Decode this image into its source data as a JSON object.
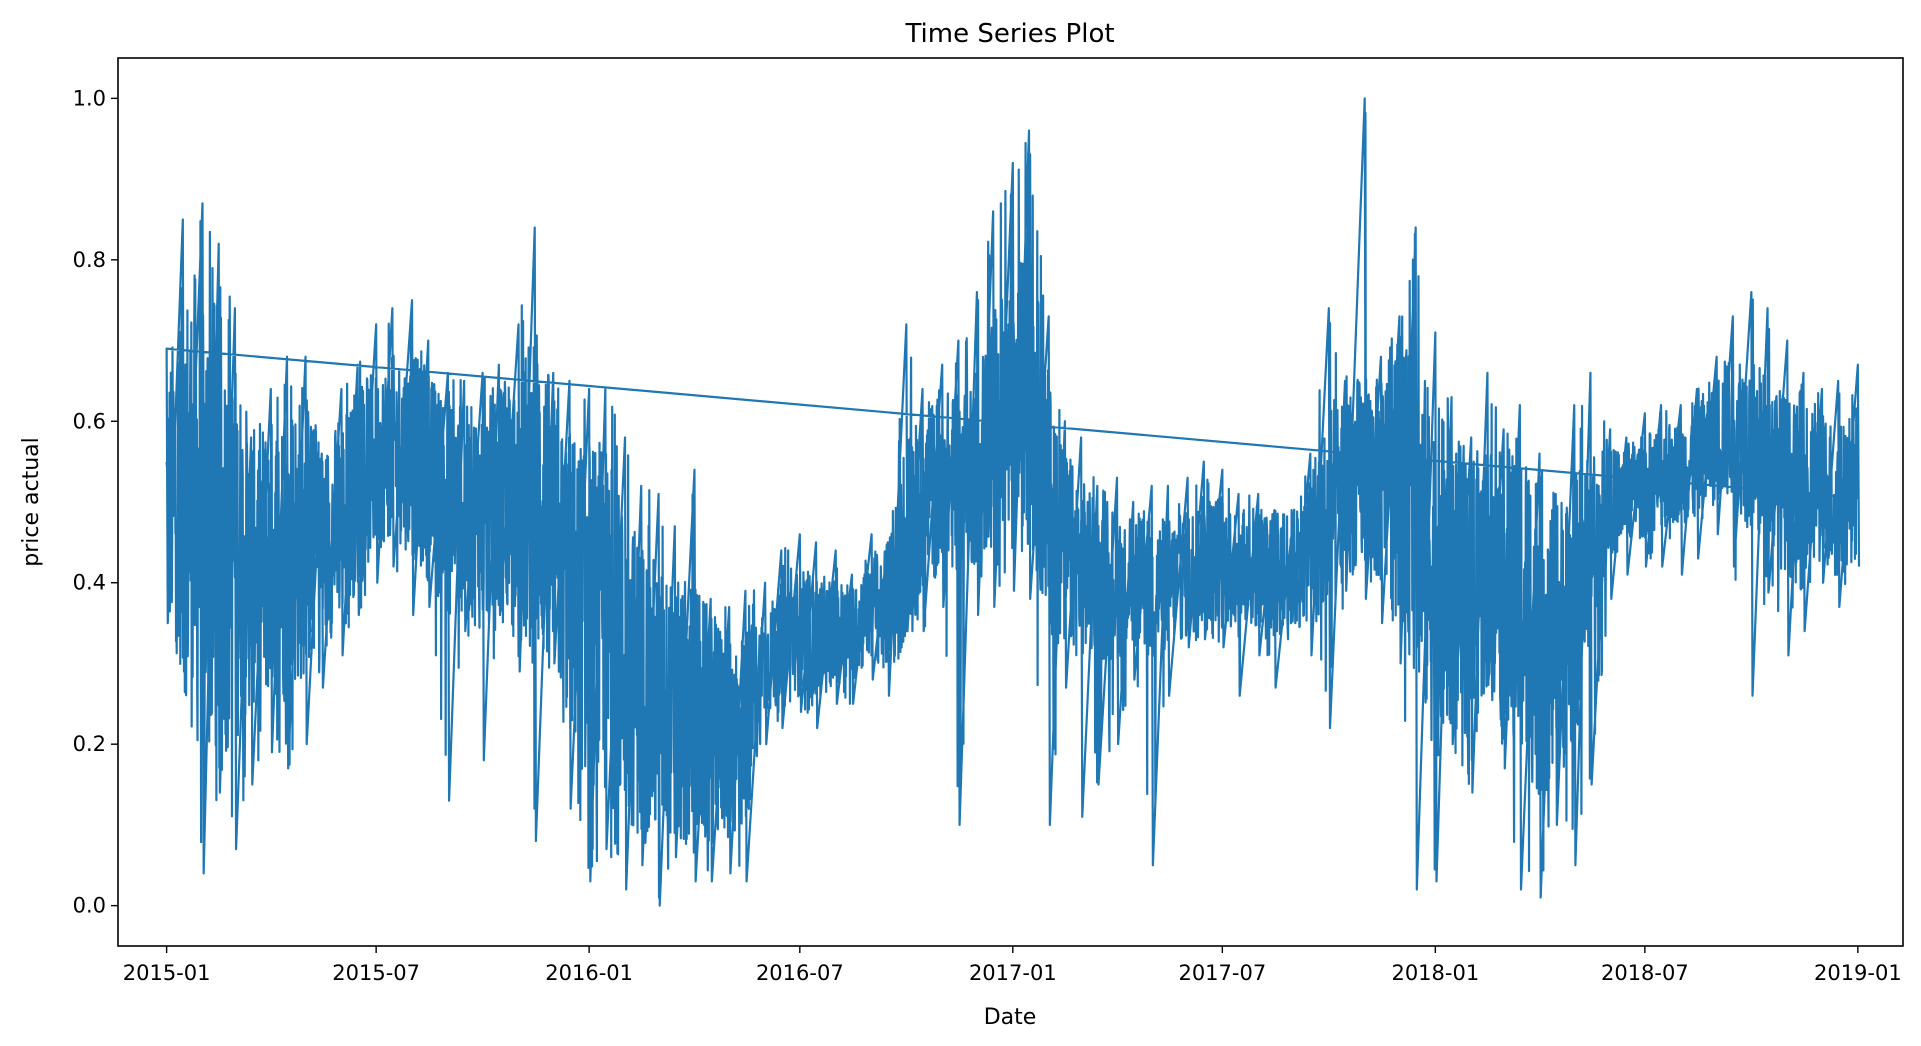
{
  "chart_data": {
    "type": "line",
    "title": "Time Series Plot",
    "xlabel": "Date",
    "ylabel": "price actual",
    "x_range": [
      "2014-11-20",
      "2019-02-09"
    ],
    "ylim": [
      -0.05,
      1.05
    ],
    "x_ticks": [
      {
        "date": "2015-01-01",
        "label": "2015-01"
      },
      {
        "date": "2015-07-01",
        "label": "2015-07"
      },
      {
        "date": "2016-01-01",
        "label": "2016-01"
      },
      {
        "date": "2016-07-01",
        "label": "2016-07"
      },
      {
        "date": "2017-01-01",
        "label": "2017-01"
      },
      {
        "date": "2017-07-01",
        "label": "2017-07"
      },
      {
        "date": "2018-01-01",
        "label": "2018-01"
      },
      {
        "date": "2018-07-01",
        "label": "2018-07"
      },
      {
        "date": "2019-01-01",
        "label": "2019-01"
      }
    ],
    "y_ticks": [
      0.0,
      0.2,
      0.4,
      0.6,
      0.8,
      1.0
    ],
    "y_tick_labels": [
      "0.0",
      "0.2",
      "0.4",
      "0.6",
      "0.8",
      "1.0"
    ],
    "grid": false,
    "line_color": "#1f77b4",
    "series": [
      {
        "x": [
          "2015-01-01",
          "2015-01-15",
          "2015-02-01",
          "2015-02-15",
          "2015-03-01",
          "2015-03-15",
          "2015-04-01",
          "2015-04-15",
          "2015-05-01",
          "2015-05-15",
          "2015-06-01",
          "2015-06-15",
          "2015-07-01",
          "2015-07-15",
          "2015-08-01",
          "2015-08-15",
          "2015-09-01",
          "2015-09-15",
          "2015-10-01",
          "2015-10-15",
          "2015-11-01",
          "2015-11-15",
          "2015-12-01",
          "2015-12-15",
          "2016-01-01",
          "2016-01-15",
          "2016-02-01",
          "2016-02-15",
          "2016-03-01",
          "2016-03-15",
          "2016-04-01",
          "2016-04-15",
          "2016-05-01",
          "2016-05-15",
          "2016-06-01",
          "2016-06-15",
          "2016-07-01",
          "2016-07-15",
          "2016-08-01",
          "2016-08-15",
          "2016-09-01",
          "2016-09-15",
          "2016-10-01",
          "2016-10-15",
          "2016-11-01",
          "2016-11-15",
          "2016-12-01",
          "2016-12-15",
          "2017-01-01",
          "2017-01-15",
          "2017-02-01",
          "2017-02-15",
          "2017-03-01",
          "2017-03-15",
          "2017-04-01",
          "2017-04-15",
          "2017-05-01",
          "2017-05-15",
          "2017-06-01",
          "2017-06-15",
          "2017-07-01",
          "2017-07-15",
          "2017-08-01",
          "2017-08-15",
          "2017-09-01",
          "2017-09-15",
          "2017-10-01",
          "2017-10-15",
          "2017-11-01",
          "2017-11-15",
          "2017-12-01",
          "2017-12-15",
          "2018-01-01",
          "2018-01-15",
          "2018-02-01",
          "2018-02-15",
          "2018-03-01",
          "2018-03-15",
          "2018-04-01",
          "2018-04-15",
          "2018-05-01",
          "2018-05-15",
          "2018-06-01",
          "2018-06-15",
          "2018-07-01",
          "2018-07-15",
          "2018-08-01",
          "2018-08-15",
          "2018-09-01",
          "2018-09-15",
          "2018-10-01",
          "2018-10-15",
          "2018-11-01",
          "2018-11-15",
          "2018-12-01",
          "2018-12-15",
          "2019-01-01"
        ],
        "low": [
          0.35,
          0.29,
          0.04,
          0.14,
          0.07,
          0.15,
          0.19,
          0.17,
          0.2,
          0.27,
          0.31,
          0.36,
          0.4,
          0.42,
          0.36,
          0.37,
          0.13,
          0.34,
          0.18,
          0.36,
          0.29,
          0.08,
          0.3,
          0.12,
          0.03,
          0.07,
          0.02,
          0.05,
          0.0,
          0.06,
          0.03,
          0.03,
          0.04,
          0.03,
          0.2,
          0.22,
          0.24,
          0.22,
          0.25,
          0.25,
          0.28,
          0.26,
          0.34,
          0.34,
          0.37,
          0.1,
          0.36,
          0.37,
          0.39,
          0.38,
          0.1,
          0.27,
          0.11,
          0.15,
          0.2,
          0.28,
          0.05,
          0.26,
          0.32,
          0.33,
          0.32,
          0.26,
          0.31,
          0.27,
          0.35,
          0.31,
          0.22,
          0.39,
          0.38,
          0.35,
          0.3,
          0.02,
          0.03,
          0.2,
          0.14,
          0.28,
          0.17,
          0.02,
          0.01,
          0.1,
          0.05,
          0.15,
          0.38,
          0.41,
          0.42,
          0.42,
          0.41,
          0.43,
          0.46,
          0.42,
          0.26,
          0.39,
          0.31,
          0.34,
          0.4,
          0.37,
          0.42
        ],
        "high": [
          0.69,
          0.85,
          0.87,
          0.82,
          0.74,
          0.58,
          0.64,
          0.68,
          0.68,
          0.56,
          0.64,
          0.67,
          0.72,
          0.74,
          0.75,
          0.7,
          0.66,
          0.65,
          0.66,
          0.67,
          0.72,
          0.84,
          0.66,
          0.65,
          0.64,
          0.64,
          0.58,
          0.52,
          0.51,
          0.47,
          0.54,
          0.38,
          0.37,
          0.39,
          0.4,
          0.44,
          0.46,
          0.45,
          0.44,
          0.41,
          0.46,
          0.45,
          0.72,
          0.64,
          0.67,
          0.7,
          0.76,
          0.86,
          0.92,
          0.96,
          0.73,
          0.6,
          0.58,
          0.52,
          0.53,
          0.5,
          0.52,
          0.52,
          0.53,
          0.55,
          0.54,
          0.51,
          0.51,
          0.49,
          0.49,
          0.56,
          0.74,
          0.65,
          1.0,
          0.68,
          0.73,
          0.84,
          0.71,
          0.63,
          0.58,
          0.66,
          0.59,
          0.62,
          0.56,
          0.51,
          0.62,
          0.66,
          0.59,
          0.58,
          0.61,
          0.62,
          0.62,
          0.64,
          0.68,
          0.73,
          0.76,
          0.74,
          0.7,
          0.66,
          0.64,
          0.65,
          0.67
        ],
        "center": [
          0.5,
          0.52,
          0.48,
          0.46,
          0.44,
          0.42,
          0.43,
          0.44,
          0.46,
          0.44,
          0.48,
          0.52,
          0.55,
          0.57,
          0.56,
          0.53,
          0.5,
          0.49,
          0.48,
          0.5,
          0.48,
          0.52,
          0.46,
          0.4,
          0.36,
          0.35,
          0.3,
          0.27,
          0.25,
          0.24,
          0.23,
          0.22,
          0.21,
          0.22,
          0.3,
          0.32,
          0.34,
          0.33,
          0.34,
          0.34,
          0.37,
          0.37,
          0.45,
          0.5,
          0.53,
          0.52,
          0.55,
          0.58,
          0.6,
          0.64,
          0.5,
          0.44,
          0.42,
          0.4,
          0.4,
          0.4,
          0.39,
          0.4,
          0.41,
          0.43,
          0.43,
          0.41,
          0.42,
          0.41,
          0.42,
          0.45,
          0.48,
          0.52,
          0.54,
          0.52,
          0.53,
          0.48,
          0.4,
          0.4,
          0.38,
          0.42,
          0.4,
          0.38,
          0.34,
          0.33,
          0.36,
          0.45,
          0.5,
          0.51,
          0.52,
          0.53,
          0.54,
          0.55,
          0.58,
          0.6,
          0.57,
          0.55,
          0.52,
          0.5,
          0.52,
          0.5,
          0.53
        ],
        "spread": [
          0.1,
          0.16,
          0.2,
          0.18,
          0.15,
          0.11,
          0.11,
          0.12,
          0.11,
          0.08,
          0.08,
          0.08,
          0.07,
          0.07,
          0.08,
          0.08,
          0.09,
          0.08,
          0.09,
          0.09,
          0.1,
          0.14,
          0.11,
          0.12,
          0.14,
          0.14,
          0.12,
          0.12,
          0.11,
          0.1,
          0.11,
          0.09,
          0.08,
          0.08,
          0.04,
          0.05,
          0.05,
          0.05,
          0.04,
          0.04,
          0.04,
          0.05,
          0.09,
          0.07,
          0.07,
          0.07,
          0.08,
          0.1,
          0.11,
          0.12,
          0.1,
          0.08,
          0.07,
          0.06,
          0.06,
          0.05,
          0.06,
          0.05,
          0.05,
          0.05,
          0.05,
          0.05,
          0.05,
          0.05,
          0.05,
          0.06,
          0.09,
          0.07,
          0.08,
          0.08,
          0.1,
          0.13,
          0.14,
          0.12,
          0.11,
          0.1,
          0.1,
          0.13,
          0.13,
          0.11,
          0.11,
          0.07,
          0.04,
          0.04,
          0.04,
          0.04,
          0.04,
          0.05,
          0.05,
          0.06,
          0.07,
          0.07,
          0.07,
          0.07,
          0.06,
          0.06,
          0.06
        ]
      }
    ]
  }
}
